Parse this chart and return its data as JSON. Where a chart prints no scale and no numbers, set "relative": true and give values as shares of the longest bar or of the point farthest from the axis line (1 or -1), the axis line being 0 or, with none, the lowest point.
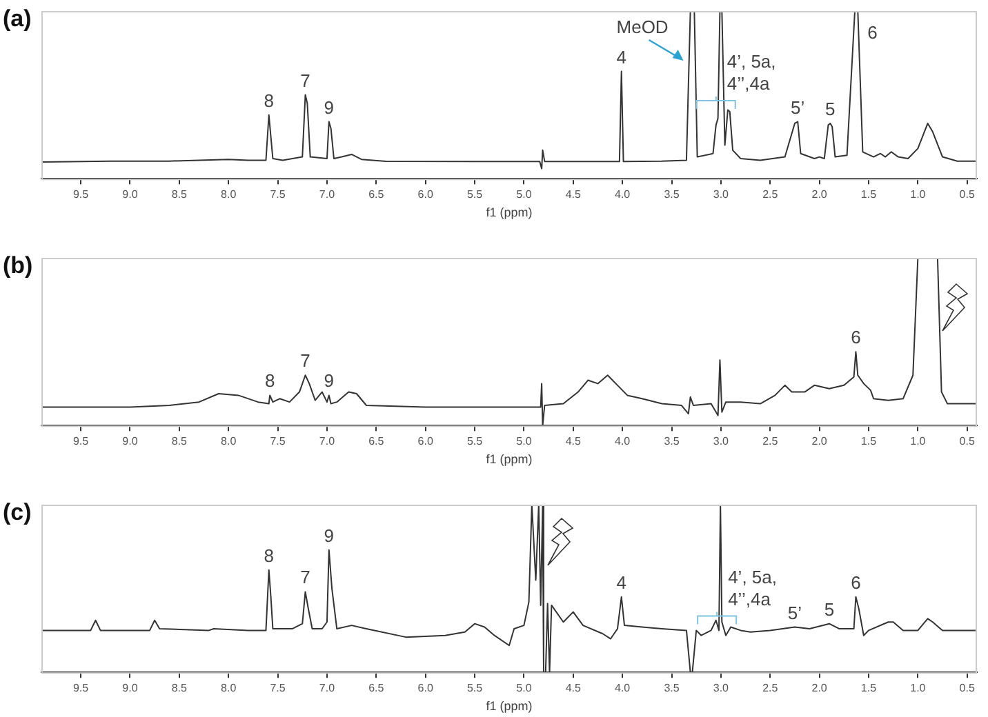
{
  "chart_data": [
    {
      "type": "line",
      "title": "(a)",
      "xlabel": "f1 (ppm)",
      "relative": true,
      "xlim": [
        9.9,
        0.4
      ],
      "xticks": [
        9.5,
        {
          "value": 9,
          "label": "9.0"
        },
        8.5,
        {
          "value": 8,
          "label": "8.0"
        },
        7.5,
        {
          "value": 7,
          "label": "7.0"
        },
        6.5,
        {
          "value": 6,
          "label": "6.0"
        },
        5.5,
        {
          "value": 5,
          "label": "5.0"
        },
        4.5,
        {
          "value": 4,
          "label": "4.0"
        },
        3.5,
        {
          "value": 3,
          "label": "3.0"
        },
        2.5,
        {
          "value": 2,
          "label": "2.0"
        },
        1.5,
        {
          "value": 1,
          "label": "1.0"
        },
        0.5
      ],
      "x": [
        9.9,
        9.2,
        8.6,
        8.3,
        8.0,
        7.8,
        7.62,
        7.59,
        7.57,
        7.55,
        7.45,
        7.25,
        7.22,
        7.2,
        7.17,
        7.0,
        6.98,
        6.96,
        6.93,
        6.85,
        6.75,
        6.65,
        6.4,
        5.5,
        4.84,
        4.82,
        4.81,
        4.79,
        4.5,
        4.03,
        4.01,
        3.99,
        3.6,
        3.35,
        3.31,
        3.27,
        3.24,
        3.08,
        3.05,
        3.03,
        3.01,
        2.99,
        2.96,
        2.93,
        2.91,
        2.88,
        2.8,
        2.6,
        2.35,
        2.25,
        2.22,
        2.19,
        2.05,
        2.0,
        1.95,
        1.91,
        1.89,
        1.87,
        1.84,
        1.72,
        1.64,
        1.61,
        1.56,
        1.45,
        1.38,
        1.33,
        1.27,
        1.2,
        1.1,
        1.0,
        0.9,
        0.85,
        0.75,
        0.6,
        0.4
      ],
      "series": [
        {
          "color": "#333333",
          "values": [
            0.1,
            0.105,
            0.105,
            0.11,
            0.115,
            0.11,
            0.11,
            0.38,
            0.25,
            0.12,
            0.11,
            0.13,
            0.5,
            0.45,
            0.13,
            0.12,
            0.34,
            0.3,
            0.12,
            0.13,
            0.145,
            0.115,
            0.104,
            0.103,
            0.103,
            0.06,
            0.17,
            0.103,
            0.103,
            0.103,
            0.64,
            0.103,
            0.105,
            0.11,
            1,
            1,
            0.13,
            0.15,
            0.32,
            0.36,
            1,
            1,
            0.2,
            0.41,
            0.4,
            0.17,
            0.12,
            0.11,
            0.13,
            0.33,
            0.34,
            0.15,
            0.12,
            0.13,
            0.12,
            0.32,
            0.33,
            0.31,
            0.13,
            0.14,
            1,
            1,
            0.16,
            0.13,
            0.15,
            0.13,
            0.16,
            0.13,
            0.12,
            0.18,
            0.33,
            0.28,
            0.13,
            0.105,
            0.105
          ]
        }
      ],
      "annotations": [
        {
          "text": "8",
          "x": 7.59,
          "y": 0.38
        },
        {
          "text": "7",
          "x": 7.22,
          "y": 0.5
        },
        {
          "text": "9",
          "x": 6.98,
          "y": 0.34
        },
        {
          "text": "4",
          "x": 4.01,
          "y": 0.64
        },
        {
          "text": "MeOD",
          "x": 3.31,
          "y": 1
        },
        {
          "text": "4’, 5a, 4’’,4a",
          "x": 2.91,
          "y": 0.4
        },
        {
          "text": "5’",
          "x": 2.22,
          "y": 0.34
        },
        {
          "text": "5",
          "x": 1.89,
          "y": 0.33
        },
        {
          "text": "6",
          "x": 1.61,
          "y": 1
        }
      ]
    },
    {
      "type": "line",
      "title": "(b)",
      "xlabel": "f1 (ppm)",
      "relative": true,
      "xlim": [
        9.9,
        0.4
      ],
      "xticks": [
        9.5,
        {
          "value": 9,
          "label": "9.0"
        },
        8.5,
        {
          "value": 8,
          "label": "8.0"
        },
        7.5,
        {
          "value": 7,
          "label": "7.0"
        },
        6.5,
        {
          "value": 6,
          "label": "6.0"
        },
        5.5,
        {
          "value": 5,
          "label": "5.0"
        },
        4.5,
        {
          "value": 4,
          "label": "4.0"
        },
        3.5,
        {
          "value": 3,
          "label": "3.0"
        },
        2.5,
        {
          "value": 2,
          "label": "2.0"
        },
        1.5,
        {
          "value": 1,
          "label": "1.0"
        },
        0.5
      ],
      "x": [
        9.9,
        9.0,
        8.6,
        8.3,
        8.1,
        7.9,
        7.7,
        7.59,
        7.58,
        7.55,
        7.48,
        7.38,
        7.28,
        7.22,
        7.18,
        7.12,
        7.05,
        7.0,
        6.98,
        6.96,
        6.9,
        6.78,
        6.7,
        6.6,
        6.0,
        5.0,
        4.83,
        4.82,
        4.81,
        4.79,
        4.6,
        4.45,
        4.35,
        4.25,
        4.15,
        4.05,
        3.95,
        3.8,
        3.6,
        3.4,
        3.33,
        3.31,
        3.28,
        3.1,
        3.03,
        3.01,
        2.99,
        2.95,
        2.8,
        2.6,
        2.45,
        2.35,
        2.28,
        2.15,
        2.05,
        1.9,
        1.75,
        1.65,
        1.63,
        1.61,
        1.55,
        1.48,
        1.45,
        1.3,
        1.15,
        1.05,
        1.0,
        0.8,
        0.76,
        0.7,
        0.4
      ],
      "series": [
        {
          "color": "#333333",
          "values": [
            0.11,
            0.11,
            0.12,
            0.14,
            0.19,
            0.18,
            0.14,
            0.13,
            0.18,
            0.14,
            0.16,
            0.14,
            0.2,
            0.3,
            0.25,
            0.15,
            0.2,
            0.14,
            0.18,
            0.13,
            0.14,
            0.2,
            0.19,
            0.12,
            0.11,
            0.11,
            0.11,
            0.25,
            0,
            0.12,
            0.13,
            0.2,
            0.27,
            0.25,
            0.3,
            0.24,
            0.18,
            0.16,
            0.13,
            0.12,
            0.07,
            0.17,
            0.12,
            0.13,
            0.06,
            0.39,
            0.08,
            0.14,
            0.14,
            0.13,
            0.18,
            0.24,
            0.2,
            0.2,
            0.24,
            0.22,
            0.24,
            0.29,
            0.44,
            0.3,
            0.25,
            0.21,
            0.16,
            0.15,
            0.16,
            0.3,
            1,
            1,
            0.2,
            0.13,
            0.13
          ]
        }
      ],
      "annotations": [
        {
          "text": "8",
          "x": 7.58,
          "y": 0.18
        },
        {
          "text": "7",
          "x": 7.22,
          "y": 0.3
        },
        {
          "text": "9",
          "x": 6.98,
          "y": 0.18
        },
        {
          "text": "6",
          "x": 1.63,
          "y": 0.44
        }
      ]
    },
    {
      "type": "line",
      "title": "(c)",
      "xlabel": "f1 (ppm)",
      "relative": true,
      "xlim": [
        9.9,
        0.4
      ],
      "xticks": [
        9.5,
        {
          "value": 9,
          "label": "9.0"
        },
        8.5,
        {
          "value": 8,
          "label": "8.0"
        },
        7.5,
        {
          "value": 7,
          "label": "7.0"
        },
        6.5,
        {
          "value": 6,
          "label": "6.0"
        },
        5.5,
        {
          "value": 5,
          "label": "5.0"
        },
        4.5,
        {
          "value": 4,
          "label": "4.0"
        },
        3.5,
        {
          "value": 3,
          "label": "3.0"
        },
        2.5,
        {
          "value": 2,
          "label": "2.0"
        },
        1.5,
        {
          "value": 1,
          "label": "1.0"
        },
        0.5
      ],
      "x": [
        9.9,
        9.4,
        9.35,
        9.3,
        8.8,
        8.75,
        8.7,
        8.2,
        8.15,
        7.8,
        7.62,
        7.59,
        7.57,
        7.55,
        7.35,
        7.25,
        7.22,
        7.19,
        7.15,
        7.05,
        7.0,
        6.98,
        6.95,
        6.9,
        6.75,
        6.6,
        6.2,
        5.8,
        5.6,
        5.5,
        5.4,
        5.3,
        5.15,
        5.1,
        5.0,
        4.95,
        4.92,
        4.88,
        4.85,
        4.83,
        4.81,
        4.8,
        4.78,
        4.76,
        4.74,
        4.72,
        4.6,
        4.5,
        4.4,
        4.2,
        4.12,
        4.05,
        4.01,
        3.98,
        3.8,
        3.6,
        3.35,
        3.31,
        3.29,
        3.25,
        3.2,
        3.1,
        3.05,
        3.02,
        3.005,
        2.99,
        2.95,
        2.9,
        2.8,
        2.7,
        2.5,
        2.25,
        2.1,
        1.9,
        1.8,
        1.65,
        1.63,
        1.6,
        1.55,
        1.5,
        1.3,
        1.25,
        1.15,
        1.0,
        0.9,
        0.85,
        0.75,
        0.4
      ],
      "series": [
        {
          "color": "#333333",
          "values": [
            0.25,
            0.25,
            0.31,
            0.25,
            0.25,
            0.31,
            0.26,
            0.25,
            0.26,
            0.25,
            0.25,
            0.61,
            0.45,
            0.26,
            0.26,
            0.29,
            0.48,
            0.38,
            0.26,
            0.26,
            0.3,
            0.73,
            0.5,
            0.26,
            0.28,
            0.26,
            0.21,
            0.22,
            0.24,
            0.29,
            0.27,
            0.22,
            0.16,
            0.26,
            0.28,
            0.42,
            1,
            0.55,
            1,
            0.4,
            1,
            0,
            0,
            0.41,
            0,
            0.4,
            0.3,
            0.36,
            0.28,
            0.23,
            0.2,
            0.26,
            0.45,
            0.28,
            0.27,
            0.26,
            0.25,
            0,
            0,
            0.25,
            0.22,
            0.25,
            0.31,
            0.25,
            1,
            0.3,
            0.22,
            0.27,
            0.25,
            0.24,
            0.25,
            0.27,
            0.26,
            0.29,
            0.26,
            0.26,
            0.45,
            0.38,
            0.22,
            0.25,
            0.3,
            0.3,
            0.25,
            0.25,
            0.32,
            0.3,
            0.25,
            0.25
          ]
        }
      ],
      "annotations": [
        {
          "text": "8",
          "x": 7.59,
          "y": 0.61
        },
        {
          "text": "7",
          "x": 7.22,
          "y": 0.48
        },
        {
          "text": "9",
          "x": 6.98,
          "y": 0.73
        },
        {
          "text": "4",
          "x": 4.01,
          "y": 0.45
        },
        {
          "text": "4’, 5a, 4’’,4a",
          "x": 2.9,
          "y": 0.27
        },
        {
          "text": "5’",
          "x": 2.25,
          "y": 0.27
        },
        {
          "text": "5",
          "x": 1.9,
          "y": 0.29
        },
        {
          "text": "6",
          "x": 1.63,
          "y": 0.45
        }
      ]
    }
  ]
}
